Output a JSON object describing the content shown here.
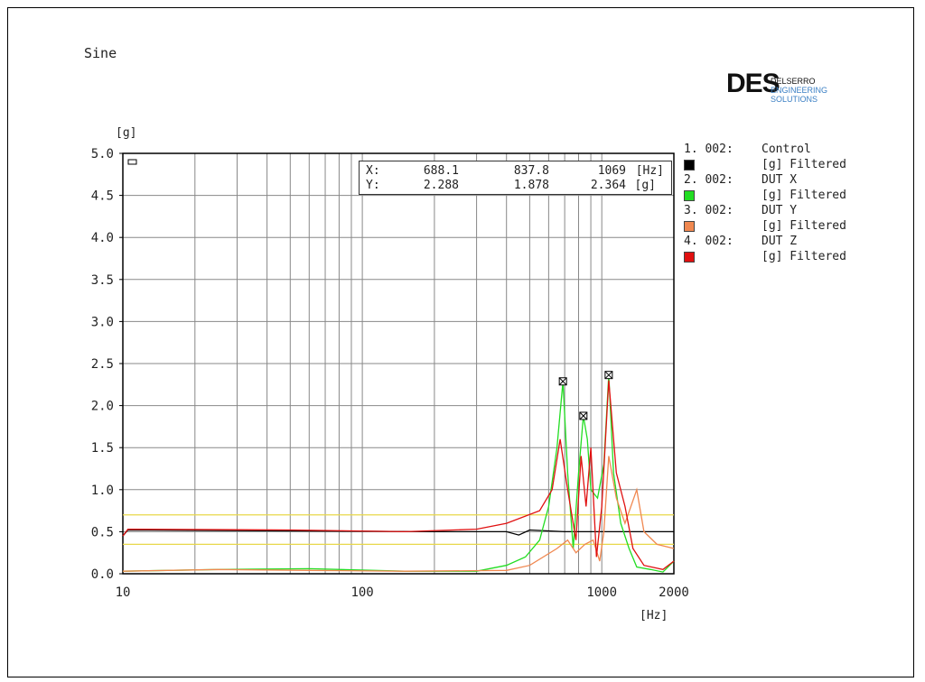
{
  "title": "Sine",
  "logo": {
    "mark": "DES",
    "line1": "DELSERRO",
    "line2": "ENGINEERING SOLUTIONS"
  },
  "readout": {
    "x_label": "X:",
    "y_label": "Y:",
    "x_values": [
      "688.1",
      "837.8",
      "1069"
    ],
    "y_values": [
      "2.288",
      "1.878",
      "2.364"
    ],
    "x_unit": "[Hz]",
    "y_unit": "[g]"
  },
  "legend": [
    {
      "index": "1. 002:",
      "name": "Control",
      "unit": "[g] Filtered",
      "color": "#000000"
    },
    {
      "index": "2. 002:",
      "name": "DUT X",
      "unit": "[g] Filtered",
      "color": "#22dd22"
    },
    {
      "index": "3. 002:",
      "name": "DUT Y",
      "unit": "[g] Filtered",
      "color": "#f08850"
    },
    {
      "index": "4. 002:",
      "name": "DUT Z",
      "unit": "[g] Filtered",
      "color": "#e01010"
    }
  ],
  "chart_data": {
    "type": "line",
    "xlabel": "[Hz]",
    "ylabel": "[g]",
    "xscale": "log",
    "xlim": [
      10,
      2000
    ],
    "ylim": [
      0,
      5
    ],
    "xticks": [
      "10",
      "100",
      "1000",
      "2000"
    ],
    "yticks": [
      "0.0",
      "0.5",
      "1.0",
      "1.5",
      "2.0",
      "2.5",
      "3.0",
      "3.5",
      "4.0",
      "4.5",
      "5.0"
    ],
    "grid": true,
    "limit_lines": [
      0.7,
      0.35
    ],
    "limit_color": "#e8d84a",
    "markers": [
      [
        688.1,
        2.288
      ],
      [
        837.8,
        1.878
      ],
      [
        1069,
        2.364
      ]
    ],
    "series": [
      {
        "name": "Control",
        "color": "#000000",
        "points": [
          [
            10,
            0.45
          ],
          [
            10.5,
            0.52
          ],
          [
            50,
            0.51
          ],
          [
            200,
            0.5
          ],
          [
            400,
            0.5
          ],
          [
            450,
            0.46
          ],
          [
            500,
            0.52
          ],
          [
            700,
            0.5
          ],
          [
            1000,
            0.5
          ],
          [
            1500,
            0.5
          ],
          [
            2000,
            0.5
          ]
        ]
      },
      {
        "name": "DUT X",
        "color": "#22dd22",
        "points": [
          [
            10,
            0.03
          ],
          [
            25,
            0.05
          ],
          [
            60,
            0.06
          ],
          [
            150,
            0.03
          ],
          [
            300,
            0.03
          ],
          [
            400,
            0.1
          ],
          [
            480,
            0.2
          ],
          [
            550,
            0.4
          ],
          [
            600,
            0.8
          ],
          [
            650,
            1.5
          ],
          [
            688.1,
            2.288
          ],
          [
            720,
            1.2
          ],
          [
            760,
            0.3
          ],
          [
            800,
            1.2
          ],
          [
            837.8,
            1.878
          ],
          [
            870,
            1.6
          ],
          [
            900,
            1.0
          ],
          [
            960,
            0.9
          ],
          [
            1020,
            1.3
          ],
          [
            1069,
            2.364
          ],
          [
            1120,
            1.2
          ],
          [
            1200,
            0.6
          ],
          [
            1300,
            0.3
          ],
          [
            1400,
            0.08
          ],
          [
            1600,
            0.05
          ],
          [
            1800,
            0.02
          ],
          [
            2000,
            0.15
          ]
        ]
      },
      {
        "name": "DUT Y",
        "color": "#f08850",
        "points": [
          [
            10,
            0.03
          ],
          [
            25,
            0.05
          ],
          [
            60,
            0.04
          ],
          [
            150,
            0.03
          ],
          [
            400,
            0.04
          ],
          [
            500,
            0.1
          ],
          [
            650,
            0.3
          ],
          [
            720,
            0.4
          ],
          [
            780,
            0.25
          ],
          [
            850,
            0.35
          ],
          [
            920,
            0.4
          ],
          [
            980,
            0.15
          ],
          [
            1020,
            0.5
          ],
          [
            1069,
            1.4
          ],
          [
            1150,
            0.9
          ],
          [
            1250,
            0.6
          ],
          [
            1400,
            1.0
          ],
          [
            1500,
            0.5
          ],
          [
            1700,
            0.35
          ],
          [
            2000,
            0.3
          ]
        ]
      },
      {
        "name": "DUT Z",
        "color": "#e01010",
        "points": [
          [
            10,
            0.45
          ],
          [
            10.5,
            0.53
          ],
          [
            50,
            0.52
          ],
          [
            150,
            0.5
          ],
          [
            300,
            0.53
          ],
          [
            400,
            0.6
          ],
          [
            550,
            0.75
          ],
          [
            620,
            1.0
          ],
          [
            670,
            1.6
          ],
          [
            720,
            1.0
          ],
          [
            780,
            0.4
          ],
          [
            820,
            1.4
          ],
          [
            860,
            0.8
          ],
          [
            900,
            1.5
          ],
          [
            950,
            0.2
          ],
          [
            1000,
            0.8
          ],
          [
            1069,
            2.3
          ],
          [
            1150,
            1.2
          ],
          [
            1250,
            0.8
          ],
          [
            1350,
            0.3
          ],
          [
            1500,
            0.1
          ],
          [
            1800,
            0.05
          ],
          [
            2000,
            0.15
          ]
        ]
      }
    ]
  }
}
